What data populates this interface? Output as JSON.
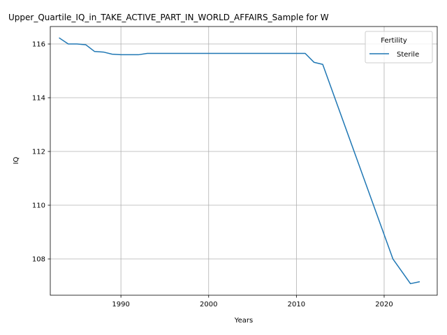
{
  "chart_data": {
    "type": "line",
    "title": "Upper_Quartile_IQ_in_TAKE_ACTIVE_PART_IN_WORLD_AFFAIRS_Sample for W",
    "xlabel": "Years",
    "ylabel": "IQ",
    "xlim": [
      1981.95,
      2026.05
    ],
    "ylim": [
      106.65,
      116.65
    ],
    "xticks": [
      1990,
      2000,
      2010,
      2020
    ],
    "yticks": [
      108,
      110,
      112,
      114,
      116
    ],
    "grid": true,
    "legend": {
      "title": "Fertility",
      "position": "top-right"
    },
    "series": [
      {
        "name": "Sterile",
        "color": "#1f77b4",
        "x": [
          1983,
          1984,
          1985,
          1986,
          1987,
          1988,
          1989,
          1990,
          1991,
          1992,
          1993,
          1994,
          1995,
          1996,
          1997,
          1998,
          1999,
          2000,
          2001,
          2002,
          2003,
          2004,
          2005,
          2006,
          2007,
          2008,
          2009,
          2010,
          2011,
          2012,
          2013,
          2021,
          2023,
          2024
        ],
        "values": [
          116.22,
          116.0,
          116.0,
          115.97,
          115.72,
          115.7,
          115.62,
          115.6,
          115.6,
          115.6,
          115.65,
          115.65,
          115.65,
          115.65,
          115.65,
          115.65,
          115.65,
          115.65,
          115.65,
          115.65,
          115.65,
          115.65,
          115.65,
          115.65,
          115.65,
          115.65,
          115.65,
          115.65,
          115.65,
          115.32,
          115.24,
          108.0,
          107.08,
          107.15
        ]
      }
    ]
  }
}
